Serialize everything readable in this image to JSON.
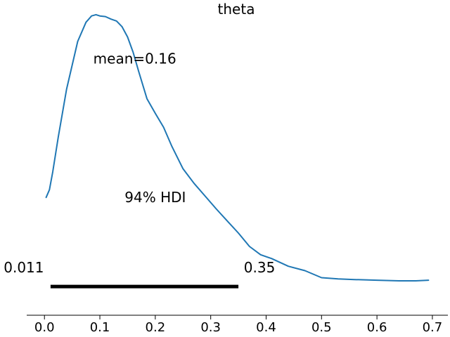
{
  "chart_data": {
    "type": "line",
    "title": "theta",
    "xlabel": "",
    "ylabel": "",
    "xlim": [
      -0.032,
      0.728
    ],
    "ylim": [
      -0.45,
      4.5
    ],
    "grid": false,
    "xticks": [
      0.0,
      0.1,
      0.2,
      0.3,
      0.4,
      0.5,
      0.6,
      0.7
    ],
    "xtick_labels": [
      "0.0",
      "0.1",
      "0.2",
      "0.3",
      "0.4",
      "0.5",
      "0.6",
      "0.7"
    ],
    "series": [
      {
        "color": "#1f77b4",
        "x": [
          0.003,
          0.009,
          0.015,
          0.025,
          0.04,
          0.06,
          0.075,
          0.085,
          0.093,
          0.1,
          0.11,
          0.12,
          0.13,
          0.14,
          0.15,
          0.16,
          0.17,
          0.185,
          0.2,
          0.215,
          0.23,
          0.25,
          0.27,
          0.29,
          0.31,
          0.33,
          0.35,
          0.37,
          0.39,
          0.41,
          0.44,
          0.47,
          0.5,
          0.53,
          0.56,
          0.6,
          0.64,
          0.67,
          0.693
        ],
        "y": [
          1.4,
          1.52,
          1.8,
          2.35,
          3.1,
          3.85,
          4.15,
          4.25,
          4.27,
          4.25,
          4.24,
          4.2,
          4.17,
          4.08,
          3.92,
          3.68,
          3.38,
          2.95,
          2.72,
          2.5,
          2.2,
          1.85,
          1.62,
          1.42,
          1.22,
          1.03,
          0.84,
          0.63,
          0.5,
          0.44,
          0.32,
          0.25,
          0.14,
          0.12,
          0.11,
          0.1,
          0.09,
          0.09,
          0.1
        ]
      }
    ],
    "hdi": {
      "label": "94% HDI",
      "lower": 0.011,
      "upper": 0.35,
      "lower_label": "0.011",
      "upper_label": "0.35",
      "label_pos": [
        0.2,
        1.4
      ]
    },
    "mean": {
      "label": "mean=0.16",
      "value": 0.16,
      "label_pos": [
        0.163,
        3.58
      ]
    }
  }
}
